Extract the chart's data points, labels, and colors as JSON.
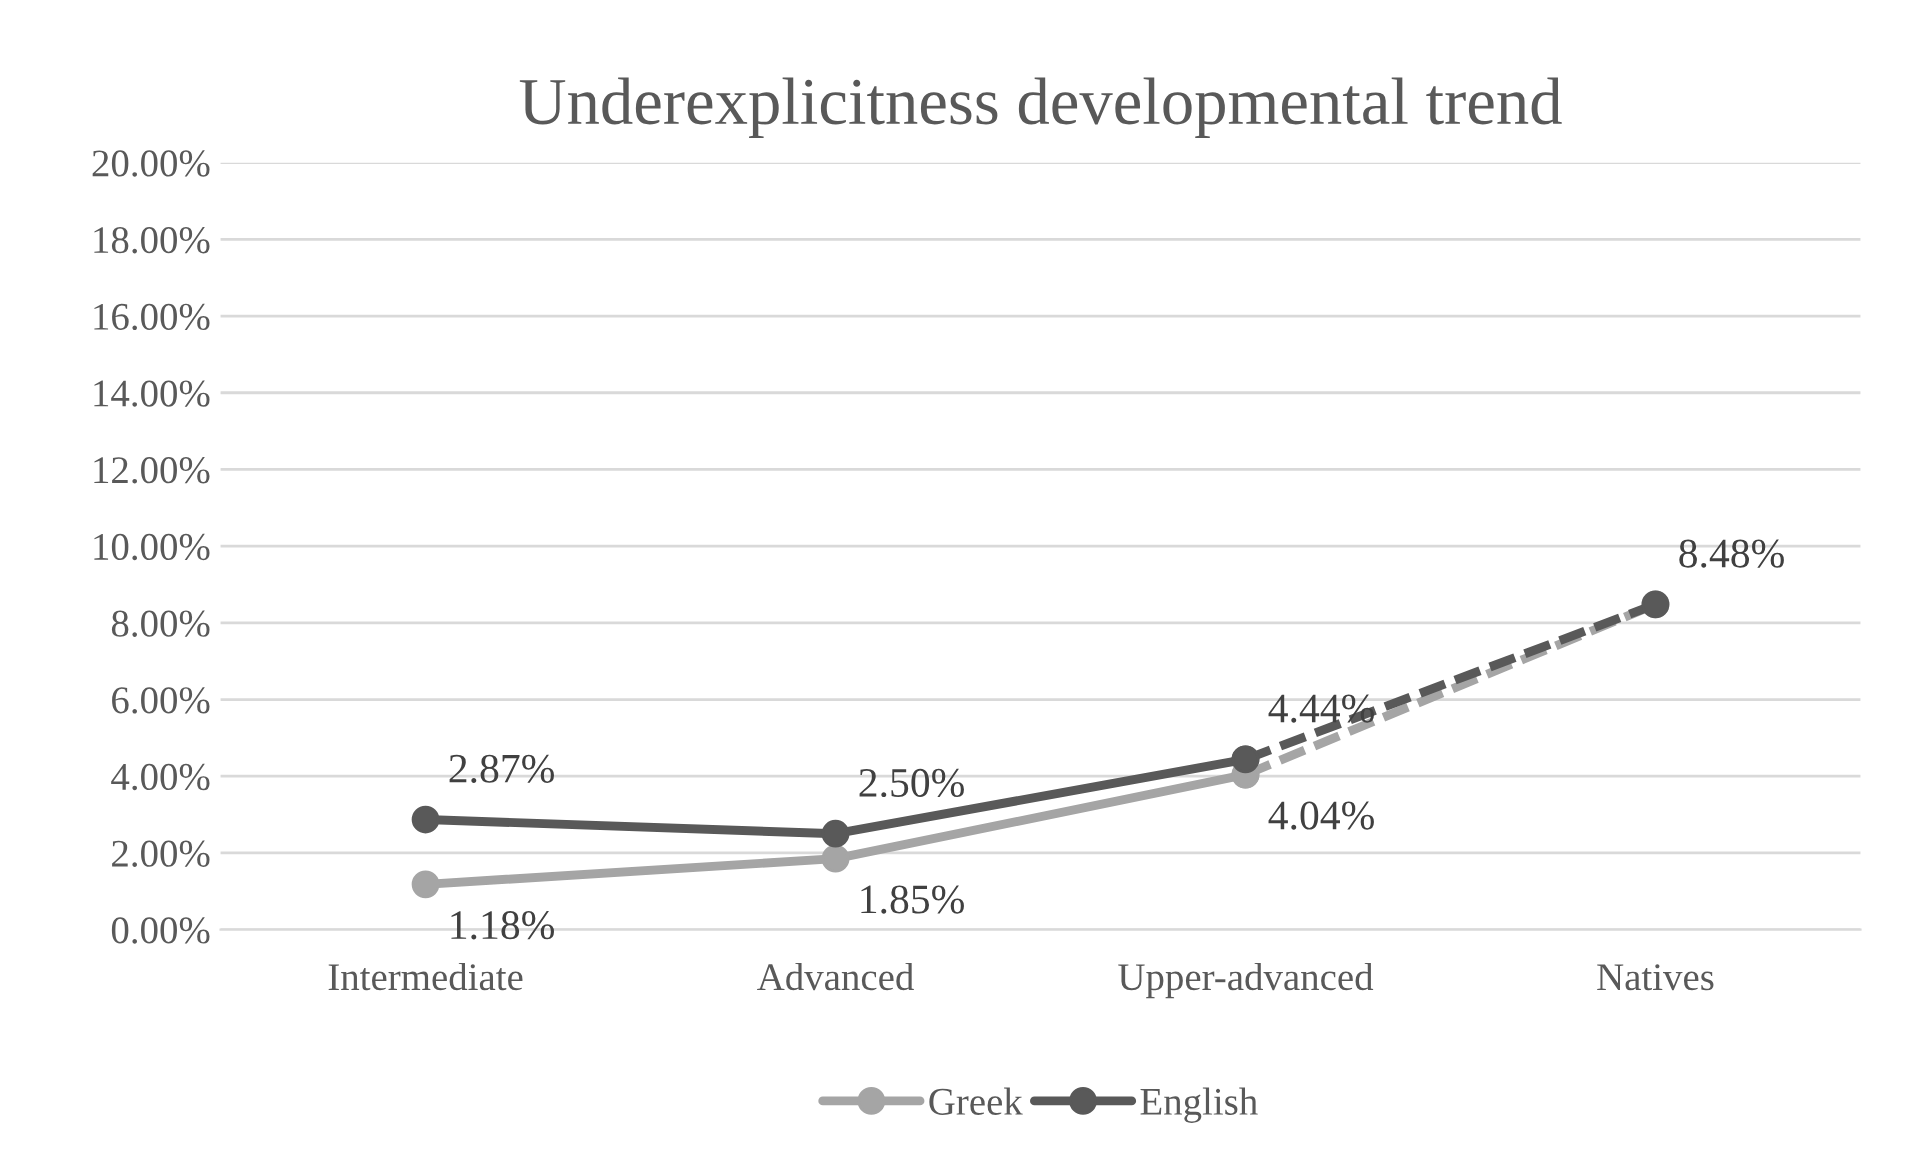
{
  "chart_data": {
    "type": "line",
    "title": "Underexplicitness developmental trend",
    "categories": [
      "Intermediate",
      "Advanced",
      "Upper-advanced",
      "Natives"
    ],
    "series": [
      {
        "name": "Greek",
        "color": "#a5a5a5",
        "values": [
          1.18,
          1.85,
          4.04,
          null
        ],
        "value_labels": [
          "1.18%",
          "1.85%",
          "4.04%",
          null
        ],
        "line_style": "solid"
      },
      {
        "name": "English",
        "color": "#595959",
        "values": [
          2.87,
          2.5,
          4.44,
          null
        ],
        "value_labels": [
          "2.87%",
          "2.50%",
          "4.44%",
          null
        ],
        "line_style": "solid"
      },
      {
        "color": "#a5a5a5",
        "values": [
          null,
          null,
          4.04,
          8.48
        ],
        "value_labels": [
          null,
          null,
          null,
          null
        ],
        "line_style": "dashed"
      },
      {
        "color": "#595959",
        "values": [
          null,
          null,
          4.44,
          8.48
        ],
        "value_labels": [
          null,
          null,
          null,
          "8.48%"
        ],
        "line_style": "dashed"
      }
    ],
    "ylim": [
      0,
      20
    ],
    "yticks": [
      {
        "value": 0,
        "label": "0.00%"
      },
      {
        "value": 2,
        "label": "2.00%"
      },
      {
        "value": 4,
        "label": "4.00%"
      },
      {
        "value": 6,
        "label": "6.00%"
      },
      {
        "value": 8,
        "label": "8.00%"
      },
      {
        "value": 10,
        "label": "10.00%"
      },
      {
        "value": 12,
        "label": "12.00%"
      },
      {
        "value": 14,
        "label": "14.00%"
      },
      {
        "value": 16,
        "label": "16.00%"
      },
      {
        "value": 18,
        "label": "18.00%"
      },
      {
        "value": 20,
        "label": "20.00%"
      }
    ],
    "grid": "y",
    "legend": "bottom",
    "marker": "circle"
  }
}
